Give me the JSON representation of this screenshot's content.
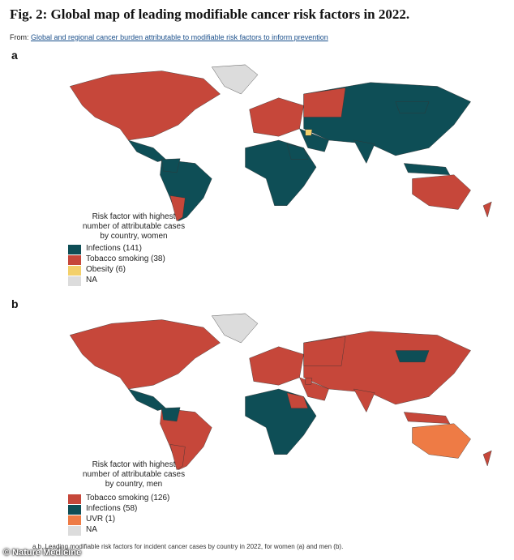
{
  "header": {
    "title": "Fig. 2: Global map of leading modifiable cancer risk factors in 2022.",
    "from_label": "From:",
    "source_link": "Global and regional cancer burden attributable to modifiable risk factors to inform prevention"
  },
  "panels": [
    {
      "label": "a",
      "legend_title_lines": [
        "Risk factor with highest",
        "number of attributable cases",
        "by country, women"
      ],
      "legend": [
        {
          "label": "Infections (141)",
          "color": "#0e4e56"
        },
        {
          "label": "Tobacco smoking (38)",
          "color": "#c6473a"
        },
        {
          "label": "Obesity (6)",
          "color": "#f3d06a"
        },
        {
          "label": "NA",
          "color": "#dcdcdc"
        }
      ]
    },
    {
      "label": "b",
      "legend_title_lines": [
        "Risk factor with highest",
        "number of attributable cases",
        "by country, men"
      ],
      "legend": [
        {
          "label": "Tobacco smoking (126)",
          "color": "#c6473a"
        },
        {
          "label": "Infections (58)",
          "color": "#0e4e56"
        },
        {
          "label": "UVR (1)",
          "color": "#ee7b45"
        },
        {
          "label": "NA",
          "color": "#dcdcdc"
        }
      ]
    }
  ],
  "caption": "a,b, Leading modifiable risk factors for incident cancer cases by country in 2022, for women (a) and men (b).",
  "watermark": "© Nature Medicine"
}
